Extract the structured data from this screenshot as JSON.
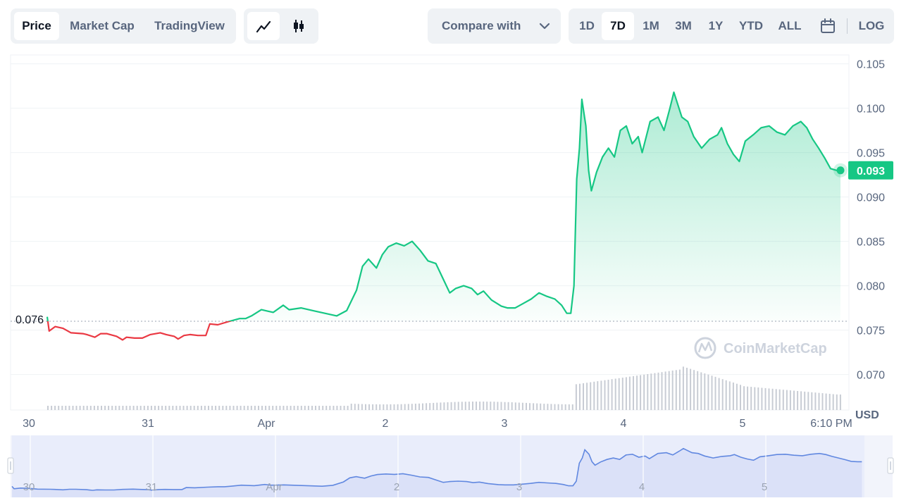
{
  "toolbar": {
    "view_tabs": [
      "Price",
      "Market Cap",
      "TradingView"
    ],
    "compare_label": "Compare with",
    "ranges": [
      "1D",
      "7D",
      "1M",
      "3M",
      "1Y",
      "YTD",
      "ALL"
    ],
    "log_label": "LOG",
    "active_view": "Price",
    "active_range": "7D"
  },
  "icons": {
    "line_chart": "line-chart-icon",
    "candlestick": "candlestick-icon",
    "dropdown": "chevron-down-icon",
    "calendar": "calendar-icon",
    "watermark_logo": "coinmarketcap-logo-icon"
  },
  "watermark": "CoinMarketCap",
  "colors": {
    "up": "#16c784",
    "down": "#ea3943",
    "navigator_line": "#6188e0",
    "navigator_fill": "#e2e8fb",
    "volume": "#c8ccd4"
  },
  "chart_data": {
    "type": "line",
    "ylabel": "USD",
    "ylim": [
      0.066,
      0.106
    ],
    "y_ticks": [
      "0.105",
      "0.100",
      "0.095",
      "0.090",
      "0.085",
      "0.080",
      "0.075",
      "0.070"
    ],
    "x_ticks": [
      "30",
      "31",
      "Apr",
      "2",
      "3",
      "4",
      "5",
      "6:10 PM"
    ],
    "open_price": "0.076",
    "current_price": "0.093",
    "price_series": [
      [
        0.0,
        0.0765
      ],
      [
        0.05,
        0.0749
      ],
      [
        0.2,
        0.0754
      ],
      [
        0.4,
        0.0752
      ],
      [
        0.6,
        0.0747
      ],
      [
        0.9,
        0.0746
      ],
      [
        1.0,
        0.0745
      ],
      [
        1.2,
        0.0742
      ],
      [
        1.35,
        0.0746
      ],
      [
        1.5,
        0.0746
      ],
      [
        1.75,
        0.0743
      ],
      [
        1.9,
        0.0739
      ],
      [
        2.0,
        0.0742
      ],
      [
        2.2,
        0.0741
      ],
      [
        2.4,
        0.0741
      ],
      [
        2.6,
        0.0745
      ],
      [
        2.85,
        0.0747
      ],
      [
        3.0,
        0.0745
      ],
      [
        3.2,
        0.0743
      ],
      [
        3.3,
        0.074
      ],
      [
        3.45,
        0.0744
      ],
      [
        3.6,
        0.0745
      ],
      [
        3.8,
        0.0744
      ],
      [
        4.0,
        0.0744
      ],
      [
        4.1,
        0.0757
      ],
      [
        4.3,
        0.0756
      ],
      [
        4.6,
        0.076
      ],
      [
        4.85,
        0.0763
      ],
      [
        5.0,
        0.0763
      ],
      [
        5.15,
        0.0766
      ],
      [
        5.4,
        0.0773
      ],
      [
        5.7,
        0.077
      ],
      [
        5.95,
        0.0778
      ],
      [
        6.1,
        0.0773
      ],
      [
        6.4,
        0.0775
      ],
      [
        6.7,
        0.0772
      ],
      [
        7.0,
        0.0769
      ],
      [
        7.3,
        0.0766
      ],
      [
        7.55,
        0.0772
      ],
      [
        7.8,
        0.0795
      ],
      [
        7.95,
        0.0822
      ],
      [
        8.1,
        0.083
      ],
      [
        8.3,
        0.082
      ],
      [
        8.45,
        0.0835
      ],
      [
        8.6,
        0.0844
      ],
      [
        8.8,
        0.0848
      ],
      [
        9.0,
        0.0845
      ],
      [
        9.2,
        0.085
      ],
      [
        9.4,
        0.084
      ],
      [
        9.6,
        0.0828
      ],
      [
        9.8,
        0.0825
      ],
      [
        10.0,
        0.0806
      ],
      [
        10.15,
        0.0792
      ],
      [
        10.3,
        0.0797
      ],
      [
        10.5,
        0.08
      ],
      [
        10.7,
        0.0797
      ],
      [
        10.85,
        0.079
      ],
      [
        11.0,
        0.0794
      ],
      [
        11.2,
        0.0784
      ],
      [
        11.45,
        0.0777
      ],
      [
        11.6,
        0.0775
      ],
      [
        11.8,
        0.0775
      ],
      [
        12.0,
        0.078
      ],
      [
        12.2,
        0.0785
      ],
      [
        12.4,
        0.0792
      ],
      [
        12.6,
        0.0788
      ],
      [
        12.8,
        0.0785
      ],
      [
        12.97,
        0.0778
      ],
      [
        13.1,
        0.0769
      ],
      [
        13.2,
        0.0769
      ],
      [
        13.28,
        0.08
      ],
      [
        13.35,
        0.092
      ],
      [
        13.42,
        0.0955
      ],
      [
        13.48,
        0.101
      ],
      [
        13.58,
        0.098
      ],
      [
        13.65,
        0.093
      ],
      [
        13.72,
        0.0907
      ],
      [
        13.85,
        0.0928
      ],
      [
        14.0,
        0.0945
      ],
      [
        14.15,
        0.0955
      ],
      [
        14.3,
        0.0945
      ],
      [
        14.45,
        0.0975
      ],
      [
        14.6,
        0.098
      ],
      [
        14.75,
        0.096
      ],
      [
        14.9,
        0.0968
      ],
      [
        15.0,
        0.095
      ],
      [
        15.2,
        0.0985
      ],
      [
        15.4,
        0.099
      ],
      [
        15.55,
        0.0975
      ],
      [
        15.7,
        0.1
      ],
      [
        15.8,
        0.1018
      ],
      [
        16.0,
        0.099
      ],
      [
        16.15,
        0.0985
      ],
      [
        16.3,
        0.0968
      ],
      [
        16.5,
        0.0955
      ],
      [
        16.7,
        0.0965
      ],
      [
        16.9,
        0.097
      ],
      [
        17.0,
        0.0978
      ],
      [
        17.15,
        0.096
      ],
      [
        17.3,
        0.0948
      ],
      [
        17.45,
        0.094
      ],
      [
        17.6,
        0.0963
      ],
      [
        17.8,
        0.097
      ],
      [
        18.0,
        0.0978
      ],
      [
        18.2,
        0.098
      ],
      [
        18.4,
        0.0973
      ],
      [
        18.6,
        0.097
      ],
      [
        18.8,
        0.098
      ],
      [
        19.0,
        0.0985
      ],
      [
        19.15,
        0.0978
      ],
      [
        19.3,
        0.0965
      ],
      [
        19.45,
        0.0955
      ],
      [
        19.6,
        0.0944
      ],
      [
        19.75,
        0.0932
      ],
      [
        19.9,
        0.093
      ],
      [
        20.0,
        0.093
      ]
    ]
  }
}
